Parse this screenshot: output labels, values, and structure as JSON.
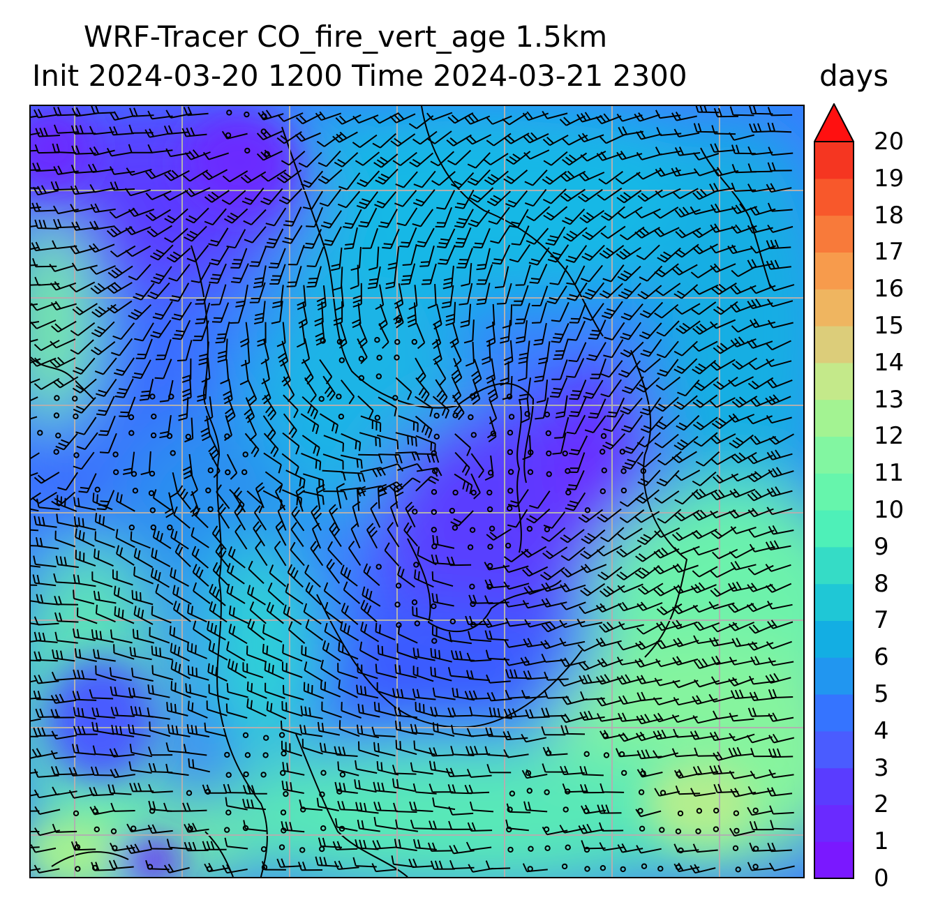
{
  "title": {
    "line1": "WRF-Tracer CO_fire_vert_age 1.5km",
    "line2": "Init 2024-03-20 1200 Time 2024-03-21 2300",
    "units": "days"
  },
  "colorbar": {
    "min": 0,
    "max": 20,
    "extend": "max",
    "tick_labels": [
      "0",
      "1",
      "2",
      "3",
      "4",
      "5",
      "6",
      "7",
      "8",
      "9",
      "10",
      "11",
      "12",
      "13",
      "14",
      "15",
      "16",
      "17",
      "18",
      "19",
      "20"
    ],
    "colors": [
      "#7a18ff",
      "#6a2aff",
      "#5a3cff",
      "#4a5cff",
      "#3574ff",
      "#2196f0",
      "#13aee3",
      "#1fc7d6",
      "#35dcc6",
      "#4ef0b8",
      "#66f5ac",
      "#82f6a1",
      "#a3f392",
      "#c4e98a",
      "#dccd7a",
      "#efb560",
      "#f79b4c",
      "#f87a3a",
      "#f8582b",
      "#f53621",
      "#f01010"
    ],
    "extend_color": "#ff1010"
  },
  "map": {
    "field": "CO_fire_vert_age",
    "level": "1.5km",
    "grid": "on",
    "coastlines": "on",
    "wind_barbs": "on"
  }
}
